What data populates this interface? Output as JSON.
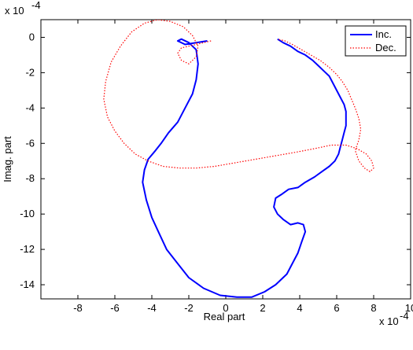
{
  "chart_data": {
    "type": "line",
    "xlabel": "Real part",
    "ylabel": "Imag. part",
    "x_multiplier": "x 10",
    "x_exponent": "-4",
    "y_multiplier": "x 10",
    "y_exponent": "-4",
    "xlim": [
      -10,
      10
    ],
    "ylim": [
      -14.8,
      1.0
    ],
    "x_ticks": [
      -8,
      -6,
      -4,
      -2,
      0,
      2,
      4,
      6,
      8,
      10
    ],
    "y_ticks": [
      0,
      -2,
      -4,
      -6,
      -8,
      -10,
      -12,
      -14
    ],
    "grid": false,
    "legend_position": "top-right",
    "series": [
      {
        "name": "Inc.",
        "color": "#0000ff",
        "style": "solid",
        "x": [
          -1.0,
          -1.6,
          -2.2,
          -2.6,
          -2.4,
          -2.0,
          -1.6,
          -1.5,
          -1.6,
          -1.8,
          -2.2,
          -2.6,
          -3.1,
          -3.5,
          -3.8,
          -4.2,
          -4.4,
          -4.5,
          -4.3,
          -4.0,
          -3.6,
          -3.2,
          -2.6,
          -2.0,
          -1.2,
          -0.3,
          0.6,
          1.4,
          2.1,
          2.7,
          3.3,
          3.6,
          3.9,
          4.1,
          4.3,
          4.2,
          3.9,
          3.5,
          3.1,
          2.8,
          2.6,
          2.7,
          3.0,
          3.4,
          3.9,
          4.3,
          4.8,
          5.2,
          5.6,
          5.9,
          6.1,
          6.2,
          6.3,
          6.4,
          6.5,
          6.5,
          6.5,
          6.4,
          6.2,
          6.0,
          5.8,
          5.6,
          5.3,
          5.0,
          4.7,
          4.3,
          3.9,
          3.5,
          3.1,
          2.8
        ],
        "y": [
          -0.2,
          -0.3,
          -0.4,
          -0.2,
          -0.1,
          -0.3,
          -0.7,
          -1.5,
          -2.4,
          -3.2,
          -4.0,
          -4.8,
          -5.4,
          -6.0,
          -6.4,
          -6.9,
          -7.5,
          -8.2,
          -9.2,
          -10.2,
          -11.1,
          -12.0,
          -12.8,
          -13.6,
          -14.2,
          -14.6,
          -14.7,
          -14.7,
          -14.4,
          -14.0,
          -13.4,
          -12.8,
          -12.2,
          -11.6,
          -11.0,
          -10.6,
          -10.5,
          -10.6,
          -10.3,
          -10.0,
          -9.6,
          -9.1,
          -8.9,
          -8.6,
          -8.5,
          -8.2,
          -7.9,
          -7.6,
          -7.3,
          -7.0,
          -6.6,
          -6.2,
          -5.8,
          -5.4,
          -5.0,
          -4.6,
          -4.2,
          -3.8,
          -3.4,
          -3.0,
          -2.6,
          -2.2,
          -1.9,
          -1.6,
          -1.3,
          -1.0,
          -0.8,
          -0.5,
          -0.3,
          -0.1
        ]
      },
      {
        "name": "Dec.",
        "color": "#ff0000",
        "style": "dotted",
        "x": [
          -0.8,
          -1.2,
          -1.6,
          -2.0,
          -2.4,
          -2.6,
          -2.4,
          -2.0,
          -1.6,
          -1.5,
          -1.8,
          -2.3,
          -3.0,
          -3.7,
          -4.4,
          -5.1,
          -5.7,
          -6.2,
          -6.5,
          -6.6,
          -6.4,
          -6.0,
          -5.5,
          -4.9,
          -4.2,
          -3.4,
          -2.5,
          -1.6,
          -0.6,
          0.5,
          1.6,
          2.7,
          3.8,
          4.8,
          5.7,
          6.5,
          7.1,
          7.6,
          7.9,
          8.0,
          7.8,
          7.5,
          7.2,
          7.0,
          7.2,
          7.3,
          7.2,
          7.0,
          6.8,
          6.6,
          6.3,
          6.0,
          5.6,
          5.1,
          4.6,
          4.1,
          3.6,
          3.2,
          2.8
        ],
        "y": [
          -0.2,
          -0.3,
          -0.4,
          -0.5,
          -0.6,
          -0.9,
          -1.3,
          -1.5,
          -1.1,
          -0.5,
          0.1,
          0.6,
          0.9,
          1.0,
          0.8,
          0.3,
          -0.5,
          -1.4,
          -2.5,
          -3.5,
          -4.5,
          -5.3,
          -6.0,
          -6.6,
          -7.0,
          -7.3,
          -7.4,
          -7.4,
          -7.3,
          -7.1,
          -6.9,
          -6.7,
          -6.5,
          -6.3,
          -6.1,
          -6.1,
          -6.3,
          -6.6,
          -7.0,
          -7.4,
          -7.6,
          -7.4,
          -7.0,
          -6.4,
          -5.8,
          -5.2,
          -4.6,
          -4.0,
          -3.5,
          -3.0,
          -2.5,
          -2.1,
          -1.7,
          -1.3,
          -1.0,
          -0.7,
          -0.4,
          -0.2,
          -0.1
        ]
      }
    ]
  }
}
